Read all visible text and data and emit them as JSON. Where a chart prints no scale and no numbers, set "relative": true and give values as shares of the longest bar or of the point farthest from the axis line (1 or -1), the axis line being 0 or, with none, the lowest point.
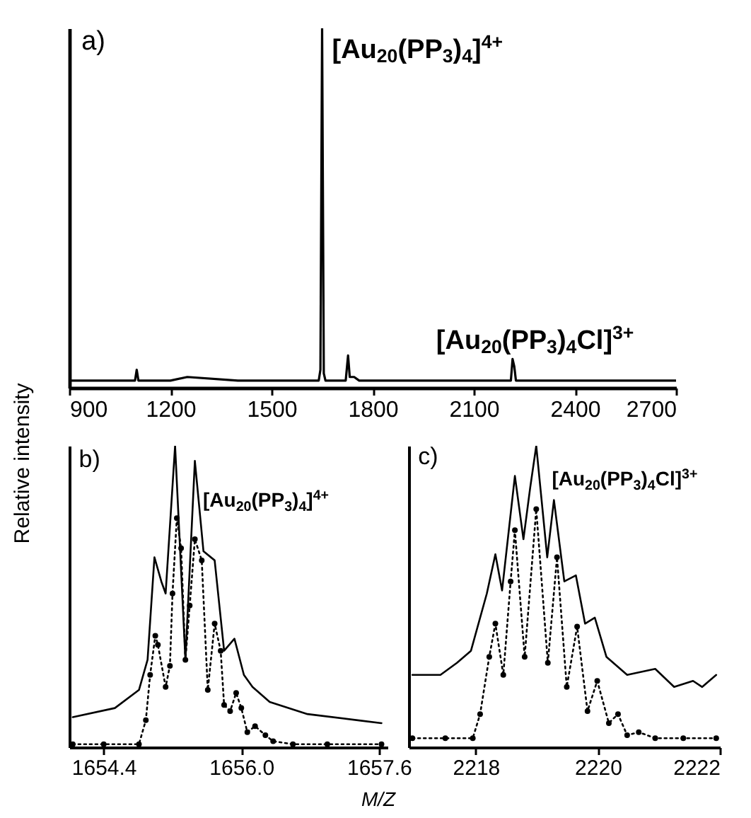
{
  "chart_data": [
    {
      "type": "line",
      "relative": true,
      "xlim": [
        900,
        2700
      ],
      "xticks": [
        900,
        1200,
        1500,
        1800,
        2100,
        2400,
        2700
      ],
      "ylabel": "Relative intensity",
      "annotations": [
        "a)",
        {
          "text": "[Au$_{20}$(PP$_{3}$)$_{4}$]$^{4+}$",
          "x": 1650,
          "y": 1
        },
        {
          "text": "[Au$_{20}$(PP$_{3}$)$_{4}$Cl]$^{3+}$",
          "x": 2215,
          "y": 0.08
        }
      ],
      "series": [
        {
          "color": "#000000",
          "line_style": "solid",
          "marker": "none",
          "x": [
            900,
            1000,
            1095,
            1100,
            1105,
            1200,
            1250,
            1400,
            1640,
            1645,
            1650,
            1655,
            1660,
            1720,
            1727,
            1732,
            1745,
            1760,
            1900,
            2100,
            2210,
            2215,
            2220,
            2225,
            2400,
            2700
          ],
          "values": [
            0.02,
            0.02,
            0.02,
            0.05,
            0.02,
            0.02,
            0.03,
            0.02,
            0.02,
            0.05,
            1,
            0.04,
            0.02,
            0.02,
            0.09,
            0.03,
            0.03,
            0.02,
            0.02,
            0.02,
            0.02,
            0.08,
            0.06,
            0.02,
            0.02,
            0.02
          ]
        }
      ]
    },
    {
      "type": "line",
      "relative": true,
      "xlim": [
        1654.0,
        1657.7
      ],
      "xticks": [
        1654.4,
        {
          "value": 1656,
          "label": "1656.0"
        },
        1657.6
      ],
      "xlabel": "M/Z",
      "annotations": [
        "b)",
        "[Au$_{20}$(PP$_{3}$)$_{4}$]$^{4+}$"
      ],
      "series": [
        {
          "color": "#000000",
          "line_style": "solid",
          "marker": "none",
          "x": [
            1654.04,
            1654.53,
            1654.81,
            1654.91,
            1654.99,
            1655.07,
            1655.12,
            1655.23,
            1655.35,
            1655.46,
            1655.56,
            1655.69,
            1655.8,
            1655.92,
            1656.03,
            1656.13,
            1656.33,
            1656.77,
            1657.63
          ],
          "values": [
            0.1,
            0.13,
            0.19,
            0.29,
            0.63,
            0.55,
            0.51,
            1,
            0.29,
            0.95,
            0.65,
            0.62,
            0.32,
            0.36,
            0.24,
            0.2,
            0.15,
            0.11,
            0.08
          ]
        },
        {
          "color": "#000000",
          "line_style": "dotted",
          "marker": "circle",
          "x": [
            1654.04,
            1654.4,
            1654.81,
            1654.89,
            1654.94,
            1655.0,
            1655.03,
            1655.12,
            1655.17,
            1655.2,
            1655.25,
            1655.3,
            1655.35,
            1655.4,
            1655.46,
            1655.54,
            1655.61,
            1655.69,
            1655.76,
            1655.8,
            1655.87,
            1655.94,
            1656.0,
            1656.07,
            1656.16,
            1656.28,
            1656.37,
            1656.6,
            1657.0,
            1657.63
          ],
          "values": [
            0.01,
            0.01,
            0.01,
            0.09,
            0.24,
            0.37,
            0.34,
            0.2,
            0.27,
            0.51,
            0.76,
            0.66,
            0.29,
            0.47,
            0.69,
            0.62,
            0.19,
            0.41,
            0.32,
            0.14,
            0.12,
            0.18,
            0.13,
            0.05,
            0.07,
            0.04,
            0.02,
            0.01,
            0.01,
            0.01
          ]
        }
      ]
    },
    {
      "type": "line",
      "relative": true,
      "xlim": [
        2216.9,
        2222
      ],
      "xticks": [
        2218,
        2220,
        2222
      ],
      "annotations": [
        "c)",
        "[Au$_{20}$(PP$_{3}$)$_{4}$Cl]$^{3+}$"
      ],
      "series": [
        {
          "color": "#000000",
          "line_style": "solid",
          "marker": "none",
          "x": [
            2216.96,
            2217.42,
            2217.69,
            2217.92,
            2218.18,
            2218.32,
            2218.43,
            2218.64,
            2218.78,
            2218.89,
            2218.99,
            2219.17,
            2219.28,
            2219.45,
            2219.64,
            2219.79,
            2219.95,
            2220.14,
            2220.48,
            2220.94,
            2221.25,
            2221.56,
            2221.71,
            2221.94
          ],
          "values": [
            0.24,
            0.24,
            0.28,
            0.32,
            0.51,
            0.64,
            0.52,
            0.9,
            0.69,
            0.86,
            1,
            0.63,
            0.82,
            0.55,
            0.57,
            0.41,
            0.43,
            0.3,
            0.24,
            0.26,
            0.2,
            0.22,
            0.2,
            0.24
          ]
        },
        {
          "color": "#000000",
          "line_style": "dotted",
          "marker": "circle",
          "x": [
            2216.96,
            2217.5,
            2217.95,
            2218.07,
            2218.22,
            2218.32,
            2218.45,
            2218.57,
            2218.64,
            2218.8,
            2218.99,
            2219.18,
            2219.33,
            2219.49,
            2219.66,
            2219.83,
            2219.99,
            2220.18,
            2220.33,
            2220.48,
            2220.67,
            2220.94,
            2221.4,
            2221.94
          ],
          "values": [
            0.03,
            0.03,
            0.03,
            0.11,
            0.3,
            0.41,
            0.24,
            0.55,
            0.72,
            0.3,
            0.79,
            0.28,
            0.63,
            0.2,
            0.4,
            0.12,
            0.22,
            0.08,
            0.11,
            0.04,
            0.05,
            0.03,
            0.03,
            0.03
          ]
        }
      ]
    }
  ]
}
